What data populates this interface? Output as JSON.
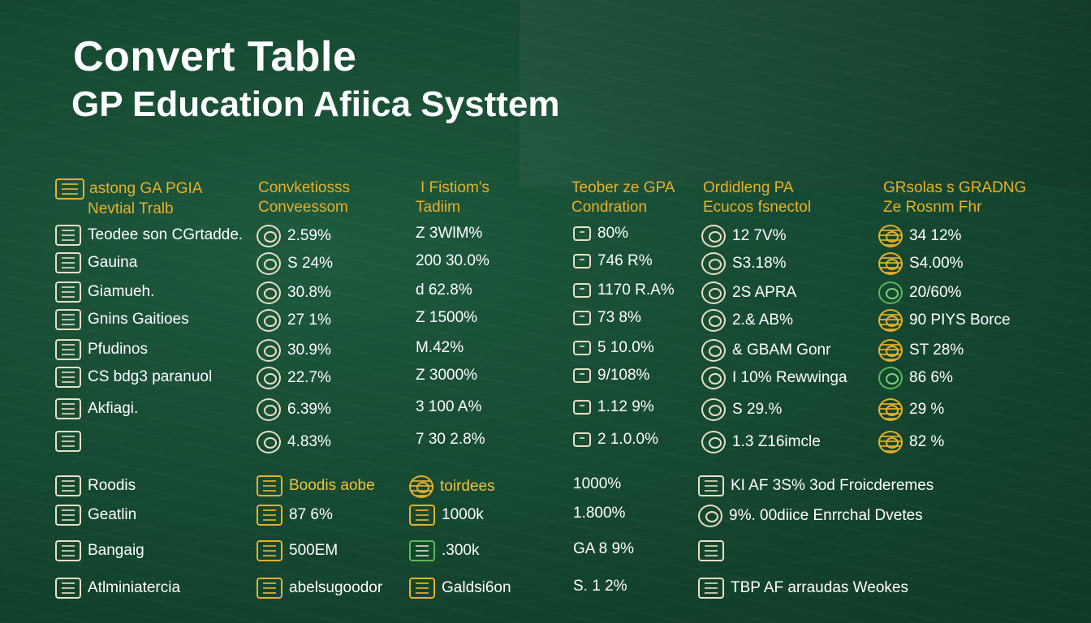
{
  "title": "Convert Table",
  "subtitle": "GP Education Afiica Systtem",
  "headers": [
    {
      "l1": "astong GA PGIA",
      "l2": "Nevtial Tralb"
    },
    {
      "l1": "Convketiosss",
      "l2": "Conveessom"
    },
    {
      "l1": "I Fistiom's",
      "l2": "Tadiim"
    },
    {
      "l1": "Teober ze GPA",
      "l2": "Condration"
    },
    {
      "l1": "Ordidleng PA",
      "l2": "Ecucos fsnectol"
    },
    {
      "l1": "GRsolas s GRADNG",
      "l2": "Ze Rosnm Fhr"
    }
  ],
  "rows": [
    {
      "c1": "Teodee son CGrtadde.",
      "c2": "2.59%",
      "c3": "Z 3WlM%",
      "c4": "80%",
      "c5": "12 7V%",
      "c6": "34 12%"
    },
    {
      "c1": "Gauina",
      "c2": "S 24%",
      "c3": "200 30.0%",
      "c4": "746 R%",
      "c5": "S3.18%",
      "c6": "S4.00%"
    },
    {
      "c1": "Giamueh.",
      "c2": "30.8%",
      "c3": "d 62.8%",
      "c4": "1170 R.A%",
      "c5": "2S APRA",
      "c6": "20/60%"
    },
    {
      "c1": "Gnins Gaitioes",
      "c2": "27 1%",
      "c3": "Z 1500%",
      "c4": "73 8%",
      "c5": "2.& AB%",
      "c6": "90 PIYS Borce"
    },
    {
      "c1": "Pfudinos",
      "c2": "30.9%",
      "c3": "M.42%",
      "c4": "5 10.0%",
      "c5": "& GBAM Gonr",
      "c6": "ST 28%"
    },
    {
      "c1": "CS bdg3 paranuol",
      "c2": "22.7%",
      "c3": "Z 3000%",
      "c4": "9/108%",
      "c5": "I 10% Rewwinga",
      "c6": "86 6%"
    },
    {
      "c1": "Akfiagi.",
      "c2": "6.39%",
      "c3": "3 100 A%",
      "c4": "1.12 9%",
      "c5": "S 29.%",
      "c6": "29 %"
    },
    {
      "c1": "",
      "c2": "4.83%",
      "c3": "7 30 2.8%",
      "c4": "2 1.0.0%",
      "c5": "1.3 Z16imcle",
      "c6": "82 %"
    }
  ],
  "rows2": [
    {
      "c1": "Roodis",
      "c2": "Boodis aobe",
      "c3": "toirdees",
      "c4": "1000%",
      "c5": "KI AF 3S% 3od Froicderemes"
    },
    {
      "c1": "Geatlin",
      "c2": "87 6%",
      "c3": "1000k",
      "c4": "1.800%",
      "c5": "9%. 00diice Enrrchal Dvetes"
    },
    {
      "c1": "Bangaig",
      "c2": "500EM",
      "c3": ".300k",
      "c4": "GA 8 9%",
      "c5": ""
    },
    {
      "c1": "Atlminiatercia",
      "c2": "abelsugoodor",
      "c3": "Galdsi6on",
      "c4": "S. 1 2%",
      "c5": "TBP AF arraudas Weokes"
    }
  ]
}
